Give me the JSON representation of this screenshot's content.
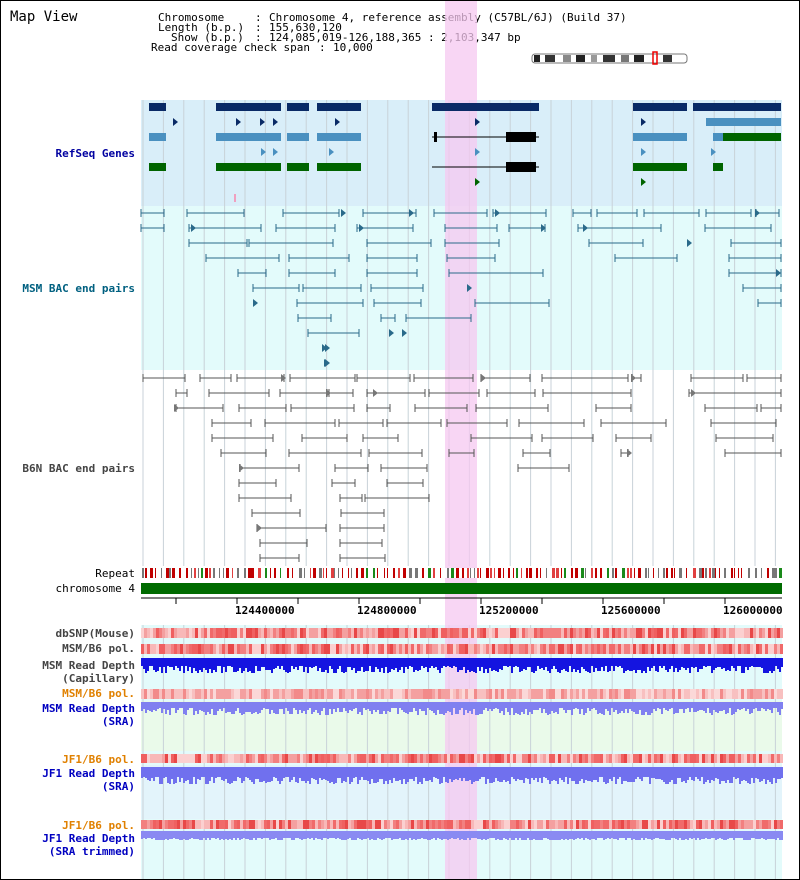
{
  "view_title": "Map View",
  "info": {
    "chromosome_label": "Chromosome",
    "chromosome_value": "Chromosome 4, reference assembly (C57BL/6J) (Build 37)",
    "length_label": "Length (b.p.)",
    "length_value": "155,630,120",
    "show_label": "Show (b.p.)",
    "show_value": "124,085,019-126,188,365 : 2,103,347 bp",
    "coverage_label": "Read coverage check span",
    "coverage_value": "10,000"
  },
  "tracks": {
    "refseq": "RefSeq Genes",
    "msm_bac": "MSM BAC end pairs",
    "b6n_bac": "B6N BAC end pairs",
    "repeat": "Repeat",
    "chromosome": "chromosome 4",
    "dbsnp": "dbSNP(Mouse)",
    "msm_b6_pol_1": "MSM/B6 pol.",
    "msm_read_depth_cap_1": "MSM Read Depth",
    "msm_read_depth_cap_2": "(Capillary)",
    "msm_b6_pol_2": "MSM/B6 pol.",
    "msm_read_depth_sra_1": "MSM Read Depth",
    "msm_read_depth_sra_2": "(SRA)",
    "jf1_b6_pol_1": "JF1/B6 pol.",
    "jf1_read_depth_sra_1": "JF1 Read Depth",
    "jf1_read_depth_sra_2": "(SRA)",
    "jf1_b6_pol_2": "JF1/B6 pol.",
    "jf1_read_depth_trim_1": "JF1 Read Depth",
    "jf1_read_depth_trim_2": "(SRA trimmed)"
  },
  "axis_ticks": [
    "124400000",
    "124800000",
    "125200000",
    "125600000",
    "126000000"
  ],
  "colors": {
    "refseq_dark": "#0a2a66",
    "refseq_mid": "#4a90c0",
    "refseq_green": "#006400",
    "msm_line": "#2a6a8a",
    "b6n_line": "#555555",
    "highlight": "#f5c8f0",
    "msm_label": "#006080",
    "refseq_label": "#0000a0",
    "pol_label": "#e08000",
    "depth_label": "#0000c0",
    "gray_label": "#444444"
  }
}
